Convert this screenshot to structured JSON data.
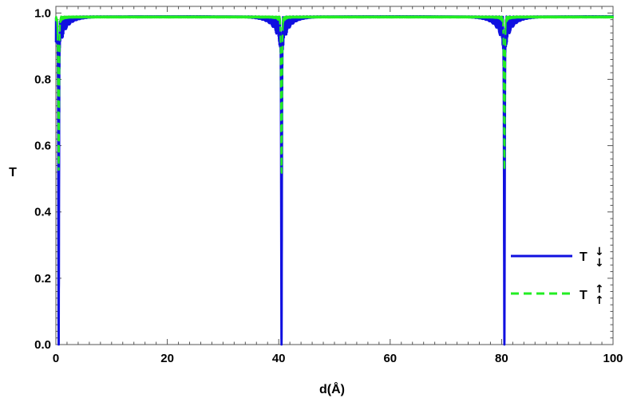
{
  "chart_data": {
    "type": "line",
    "title": "",
    "xlabel": "d(Å)",
    "ylabel": "T",
    "xlim": [
      0,
      100
    ],
    "ylim": [
      0,
      1.02
    ],
    "x_ticks": [
      0,
      20,
      40,
      60,
      80,
      100
    ],
    "x_tick_labels": [
      "0",
      "20",
      "40",
      "60",
      "80",
      "100"
    ],
    "y_ticks": [
      0.0,
      0.2,
      0.4,
      0.6,
      0.8,
      1.0
    ],
    "y_tick_labels": [
      "0.0",
      "0.2",
      "0.4",
      "0.6",
      "0.8",
      "1.0"
    ],
    "grid": false,
    "legend_position": "right",
    "series": [
      {
        "legend_letter": "T",
        "legend_arrows": [
          "↓",
          "↓"
        ],
        "color": "#1010e0",
        "style": "solid",
        "baseline": 0.99,
        "dip_centers": [
          0.5,
          40.5,
          80.5
        ],
        "dip_minimum": 0.0,
        "oscillation_envelope_min": [
          0.6,
          0.82,
          0.9,
          0.94
        ]
      },
      {
        "legend_letter": "T",
        "legend_arrows": [
          "↑",
          "↑"
        ],
        "color": "#22ee22",
        "style": "dashed",
        "baseline": 0.99,
        "dip_centers": [
          0.5,
          40.5,
          80.5
        ],
        "dip_minimum": 0.54,
        "oscillation_envelope_min": [
          0.9,
          0.96,
          0.98
        ]
      }
    ]
  }
}
